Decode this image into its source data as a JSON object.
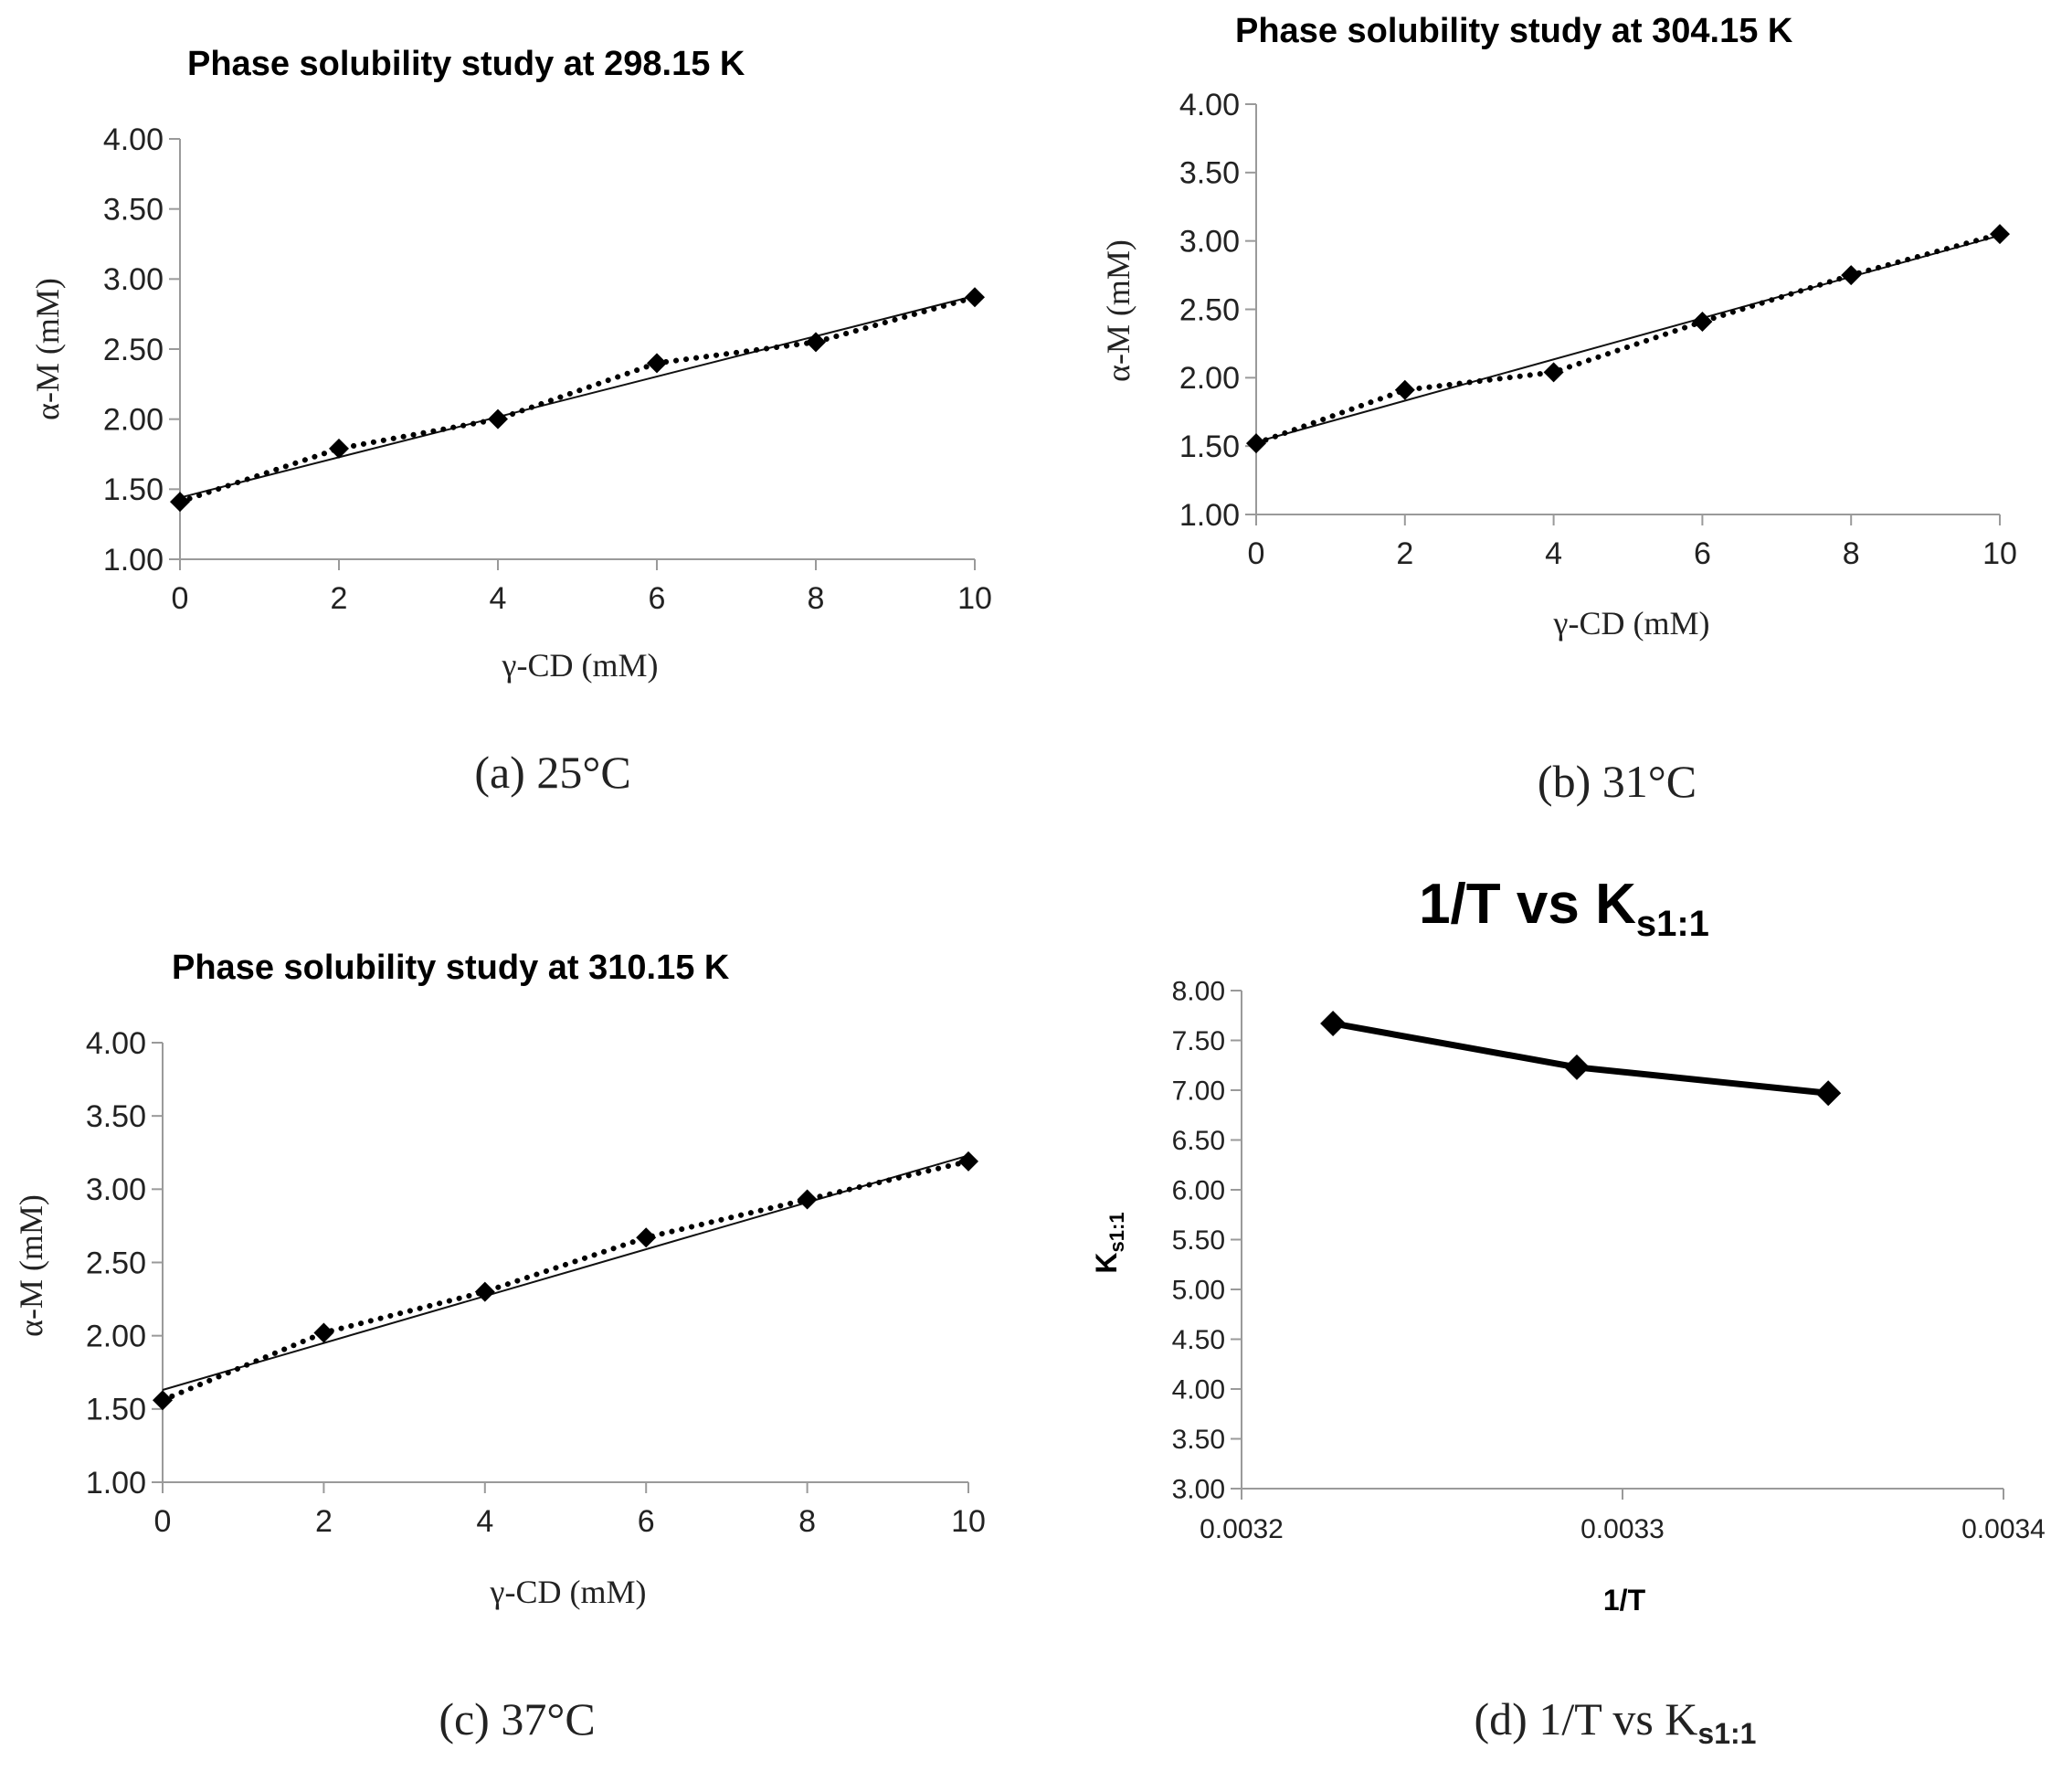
{
  "chart_data": [
    {
      "type": "scatter",
      "title": "Phase solubility study at 298.15 K",
      "xlabel": "γ-CD (mM)",
      "ylabel": "α-M (mM)",
      "caption": "(a) 25°C",
      "xlim": [
        0,
        10
      ],
      "ylim": [
        1.0,
        4.0
      ],
      "xticks": [
        "0",
        "2",
        "4",
        "6",
        "8",
        "10"
      ],
      "yticks": [
        "1.00",
        "1.50",
        "2.00",
        "2.50",
        "3.00",
        "3.50",
        "4.00"
      ],
      "x": [
        0,
        2,
        4,
        6,
        8,
        10
      ],
      "y": [
        1.41,
        1.79,
        2.0,
        2.4,
        2.55,
        2.87
      ],
      "trendline": [
        1.44,
        2.88
      ],
      "series_style": "dotted line with diamond markers; solid linear trendline"
    },
    {
      "type": "scatter",
      "title": "Phase solubility study at 304.15 K",
      "xlabel": "γ-CD (mM)",
      "ylabel": "α-M (mM)",
      "caption": "(b) 31°C",
      "xlim": [
        0,
        10
      ],
      "ylim": [
        1.0,
        4.0
      ],
      "xticks": [
        "0",
        "2",
        "4",
        "6",
        "8",
        "10"
      ],
      "yticks": [
        "1.00",
        "1.50",
        "2.00",
        "2.50",
        "3.00",
        "3.50",
        "4.00"
      ],
      "x": [
        0,
        2,
        4,
        6,
        8,
        10
      ],
      "y": [
        1.52,
        1.91,
        2.04,
        2.41,
        2.75,
        3.05
      ],
      "trendline": [
        1.53,
        3.04
      ],
      "series_style": "dotted line with diamond markers; solid linear trendline"
    },
    {
      "type": "scatter",
      "title": "Phase solubility study at 310.15 K",
      "xlabel": "γ-CD (mM)",
      "ylabel": "α-M (mM)",
      "caption": "(c) 37°C",
      "xlim": [
        0,
        10
      ],
      "ylim": [
        1.0,
        4.0
      ],
      "xticks": [
        "0",
        "2",
        "4",
        "6",
        "8",
        "10"
      ],
      "yticks": [
        "1.00",
        "1.50",
        "2.00",
        "2.50",
        "3.00",
        "3.50",
        "4.00"
      ],
      "x": [
        0,
        2,
        4,
        6,
        8,
        10
      ],
      "y": [
        1.56,
        2.02,
        2.3,
        2.67,
        2.93,
        3.19
      ],
      "trendline": [
        1.63,
        3.23
      ],
      "series_style": "dotted line with diamond markers; solid linear trendline"
    },
    {
      "type": "line",
      "title": "1/T vs K",
      "title_sub": "s1:1",
      "xlabel": "1/T",
      "ylabel": "K",
      "ylabel_sub": "s1:1",
      "caption": "(d)  1/T vs K",
      "caption_sub": "s1:1",
      "xlim": [
        0.0032,
        0.0034
      ],
      "ylim": [
        3.0,
        8.0
      ],
      "xticks": [
        "0.0032",
        "0.0033",
        "0.0034"
      ],
      "yticks": [
        "3.00",
        "3.50",
        "4.00",
        "4.50",
        "5.00",
        "5.50",
        "6.00",
        "6.50",
        "7.00",
        "7.50",
        "8.00"
      ],
      "x": [
        0.003224,
        0.003288,
        0.003354
      ],
      "y": [
        7.67,
        7.23,
        6.97
      ],
      "series_style": "thick solid line with diamond markers"
    }
  ]
}
